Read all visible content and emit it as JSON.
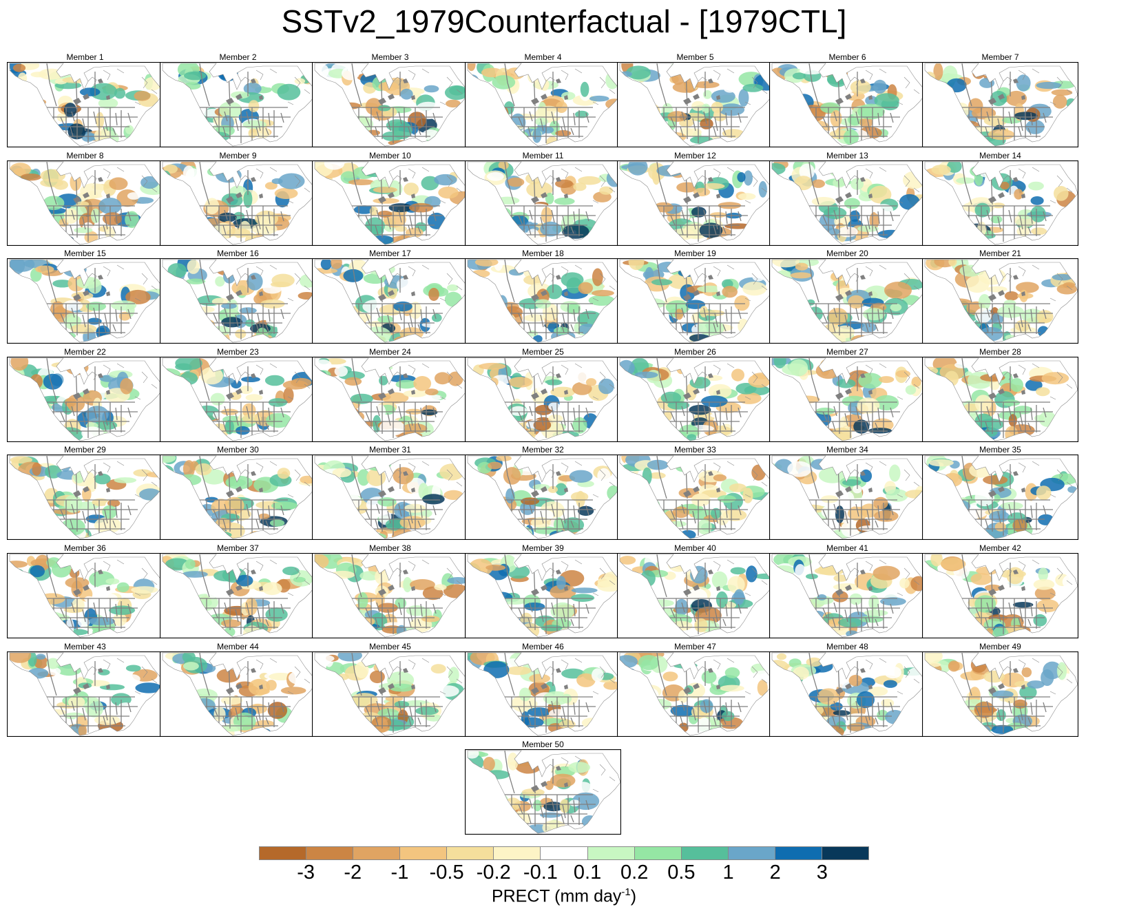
{
  "figure": {
    "title": "SSTv2_1979Counterfactual - [1979CTL]",
    "member_prefix": "Member",
    "members": [
      1,
      2,
      3,
      4,
      5,
      6,
      7,
      8,
      9,
      10,
      11,
      12,
      13,
      14,
      15,
      16,
      17,
      18,
      19,
      20,
      21,
      22,
      23,
      24,
      25,
      26,
      27,
      28,
      29,
      30,
      31,
      32,
      33,
      34,
      35,
      36,
      37,
      38,
      39,
      40,
      41,
      42,
      43,
      44,
      45,
      46,
      47,
      48,
      49,
      50
    ]
  },
  "colorbar": {
    "title_prefix": "PRECT (mm day",
    "title_exponent": "-1",
    "title_suffix": ")",
    "tick_labels": [
      "-3",
      "-2",
      "-1",
      "-0.5",
      "-0.2",
      "-0.1",
      "0.1",
      "0.2",
      "0.5",
      "1",
      "2",
      "3"
    ],
    "colors": [
      "#b5692a",
      "#cc8544",
      "#e0a462",
      "#f3c57f",
      "#f5df9c",
      "#fdf4c6",
      "#ffffff",
      "#c8f7c2",
      "#95e6a4",
      "#56bf9b",
      "#6aa6c9",
      "#0f6db0",
      "#08385a"
    ]
  },
  "map_style": {
    "ocean": "#ffffff",
    "no_data_land": "#ffffff",
    "border_color": "#7f7f7f",
    "coast_color": "#8a8a8a",
    "lake_color": "#808080"
  }
}
